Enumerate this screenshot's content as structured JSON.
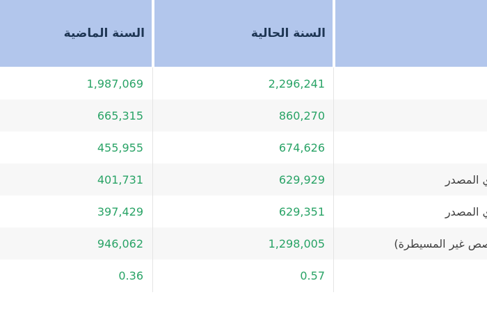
{
  "table": {
    "columns": {
      "previous_year": "السنة الماضية",
      "current_year": "السنة الحالية",
      "label": ""
    },
    "rows": [
      {
        "label": "",
        "current": "2,296,241",
        "previous": "1,987,069"
      },
      {
        "label": "",
        "current": "860,270",
        "previous": "665,315"
      },
      {
        "label": "",
        "current": "674,626",
        "previous": "455,955"
      },
      {
        "label": "ي المصدر",
        "current": "629,929",
        "previous": "401,731"
      },
      {
        "label": "ي المصدر",
        "current": "629,351",
        "previous": "397,429"
      },
      {
        "label": "صص غير المسيطرة)",
        "current": "1,298,005",
        "previous": "946,062"
      },
      {
        "label": "",
        "current": "0.57",
        "previous": "0.36"
      }
    ]
  },
  "colors": {
    "header-bg": "#b2c6ec",
    "header-text": "#1d3553",
    "value-green": "#29a366",
    "label-text": "#404040",
    "row-alt": "#f7f7f7",
    "grid-line": "#e4e4e4"
  }
}
